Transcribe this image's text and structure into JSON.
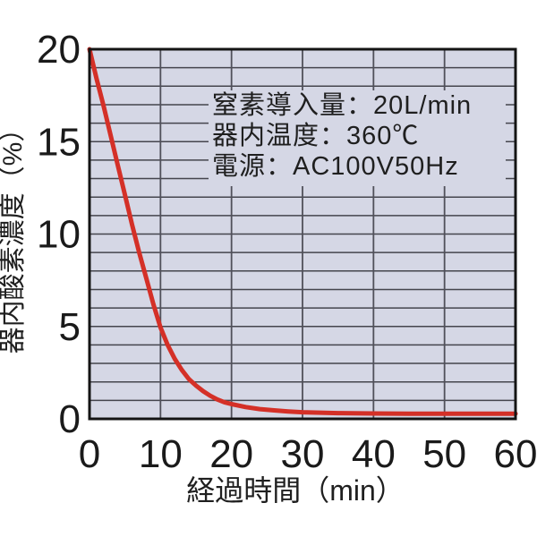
{
  "chart_data": {
    "type": "line",
    "title": "",
    "xlabel": "経過時間（min）",
    "ylabel": "器内酸素濃度（%）",
    "xlim": [
      0,
      60
    ],
    "ylim": [
      0,
      20
    ],
    "xticks": [
      "0",
      "10",
      "20",
      "30",
      "40",
      "50",
      "60"
    ],
    "xtick_values": [
      0,
      10,
      20,
      30,
      40,
      50,
      60
    ],
    "yticks": [
      "0",
      "5",
      "10",
      "15",
      "20"
    ],
    "ytick_values": [
      0,
      5,
      10,
      15,
      20
    ],
    "grid": {
      "on": true,
      "x_interval": 10,
      "y_interval": 1
    },
    "plot_bg": "#d5d7e5",
    "border_color": "#141414",
    "annotation": {
      "bg": "#d5d7e5",
      "lines": [
        "窒素導入量：20L/min",
        "器内温度：360℃",
        "電源：AC100V50Hz"
      ]
    },
    "series": [
      {
        "name": "器内酸素濃度",
        "color": "#d43027",
        "x": [
          0,
          1,
          2,
          3,
          4,
          5,
          6,
          7,
          8,
          9,
          10,
          11,
          12,
          13,
          14,
          15,
          16,
          17,
          18,
          19,
          20,
          22,
          24,
          26,
          28,
          30,
          35,
          40,
          45,
          50,
          55,
          60
        ],
        "y": [
          20.0,
          18.4,
          16.9,
          15.3,
          13.7,
          12.1,
          10.5,
          9.0,
          7.6,
          6.2,
          4.95,
          4.0,
          3.25,
          2.65,
          2.15,
          1.8,
          1.5,
          1.25,
          1.05,
          0.9,
          0.8,
          0.64,
          0.53,
          0.46,
          0.4,
          0.36,
          0.31,
          0.29,
          0.28,
          0.28,
          0.28,
          0.28
        ]
      }
    ],
    "legend": {
      "visible": false
    }
  }
}
